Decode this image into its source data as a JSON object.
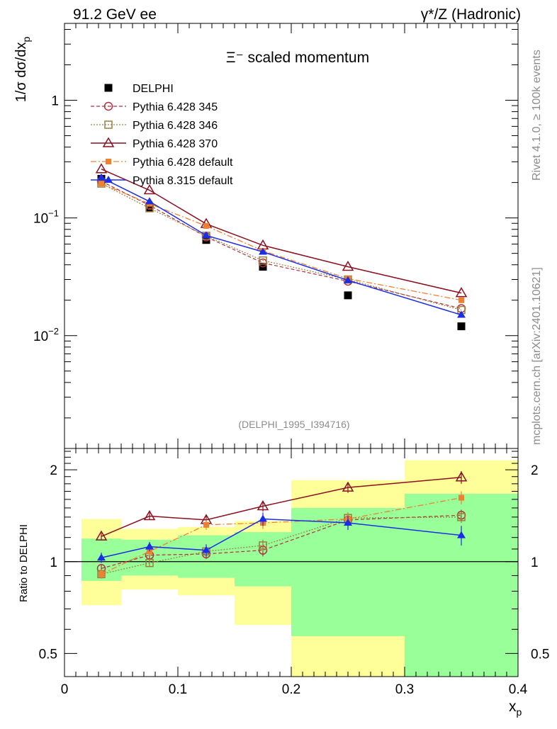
{
  "header": {
    "left_label": "91.2 GeV ee",
    "right_label": "γ*/Z (Hadronic)"
  },
  "side_labels": {
    "rivet": "Rivet 4.1.0, ≥ 100k events",
    "source": "mcplots.cern.ch [arXiv:2401.10621]"
  },
  "colors": {
    "delphi": "#000000",
    "p345": "#b03040",
    "p346": "#9c7c3c",
    "p370": "#8b1020",
    "p6def": "#f08030",
    "p8def": "#1a2ee8",
    "band_inner": "#99ff99",
    "band_outer": "#ffff99"
  },
  "chart_data": [
    {
      "type": "line",
      "title": "Ξ⁻ scaled momentum",
      "reference": "(DELPHI_1995_I394716)",
      "ylabel": "1/σ  dσ/dx_p",
      "xlabel": "",
      "yscale": "log",
      "xlim": [
        0,
        0.4
      ],
      "ylim": [
        0.0011,
        4.5
      ],
      "yticks": [
        {
          "value": 0.01,
          "label": "10",
          "exp": "−2"
        },
        {
          "value": 0.1,
          "label": "10",
          "exp": "−1"
        },
        {
          "value": 1,
          "label": "1",
          "exp": ""
        }
      ],
      "x": [
        0.0325,
        0.075,
        0.125,
        0.175,
        0.25,
        0.35
      ],
      "x_edges": [
        0.015,
        0.05,
        0.1,
        0.15,
        0.2,
        0.3,
        0.4
      ],
      "series": [
        {
          "name": "DELPHI",
          "key": "delphi",
          "values": [
            0.215,
            0.122,
            0.065,
            0.0385,
            0.022,
            0.012
          ]
        },
        {
          "name": "Pythia 6.428 345",
          "key": "p345",
          "values": [
            0.205,
            0.128,
            0.069,
            0.0415,
            0.029,
            0.017
          ]
        },
        {
          "name": "Pythia 6.428 346",
          "key": "p346",
          "values": [
            0.196,
            0.121,
            0.0705,
            0.0435,
            0.03,
            0.0165
          ]
        },
        {
          "name": "Pythia 6.428 370",
          "key": "p370",
          "values": [
            0.26,
            0.172,
            0.089,
            0.0585,
            0.0385,
            0.023
          ]
        },
        {
          "name": "Pythia 6.428 default",
          "key": "p6def",
          "values": [
            0.196,
            0.132,
            0.0855,
            0.0525,
            0.0305,
            0.02
          ]
        },
        {
          "name": "Pythia 8.315 default",
          "key": "p8def",
          "values": [
            0.22,
            0.138,
            0.071,
            0.0515,
            0.0295,
            0.015
          ]
        }
      ]
    },
    {
      "type": "line",
      "title": "",
      "xlabel": "x_p",
      "ylabel": "Ratio to DELPHI",
      "yscale": "log",
      "xlim": [
        0,
        0.4
      ],
      "ylim": [
        0.42,
        2.35
      ],
      "xticks": [
        {
          "value": 0,
          "label": "0"
        },
        {
          "value": 0.1,
          "label": "0.1"
        },
        {
          "value": 0.2,
          "label": "0.2"
        },
        {
          "value": 0.3,
          "label": "0.3"
        },
        {
          "value": 0.4,
          "label": "0.4"
        }
      ],
      "yticks": [
        {
          "value": 0.5,
          "label": "0.5"
        },
        {
          "value": 1,
          "label": "1"
        },
        {
          "value": 2,
          "label": "2"
        }
      ],
      "x": [
        0.0325,
        0.075,
        0.125,
        0.175,
        0.25,
        0.35
      ],
      "bands": {
        "x_edges": [
          0.015,
          0.05,
          0.1,
          0.15,
          0.2,
          0.3,
          0.4
        ],
        "inner_low": [
          0.865,
          0.9,
          0.885,
          0.83,
          0.57,
          0.42
        ],
        "inner_high": [
          1.19,
          1.18,
          1.22,
          1.25,
          1.5,
          1.67
        ],
        "outer_low": [
          0.72,
          0.81,
          0.775,
          0.62,
          0.42,
          0.42
        ],
        "outer_high": [
          1.38,
          1.28,
          1.3,
          1.36,
          1.85,
          2.15
        ],
        "outer_low_alt": [
          null,
          null,
          null,
          null,
          0.55,
          null
        ]
      },
      "series": [
        {
          "name": "Pythia 6.428 345",
          "key": "p345",
          "values": [
            0.95,
            1.05,
            1.06,
            1.09,
            1.37,
            1.42
          ],
          "err": [
            0.03,
            0.03,
            0.04,
            0.05,
            0.06,
            0.06
          ]
        },
        {
          "name": "Pythia 6.428 346",
          "key": "p346",
          "values": [
            0.91,
            0.99,
            1.08,
            1.13,
            1.39,
            1.4
          ],
          "err": [
            0.03,
            0.03,
            0.04,
            0.05,
            0.06,
            0.06
          ]
        },
        {
          "name": "Pythia 6.428 370",
          "key": "p370",
          "values": [
            1.21,
            1.41,
            1.37,
            1.52,
            1.75,
            1.89
          ],
          "err": [
            0.03,
            0.04,
            0.05,
            0.06,
            0.07,
            0.09
          ]
        },
        {
          "name": "Pythia 6.428 default",
          "key": "p6def",
          "values": [
            0.91,
            1.08,
            1.32,
            1.34,
            1.38,
            1.62
          ],
          "err": [
            0.03,
            0.03,
            0.05,
            0.06,
            0.06,
            0.08
          ]
        },
        {
          "name": "Pythia 8.315 default",
          "key": "p8def",
          "values": [
            1.03,
            1.12,
            1.09,
            1.38,
            1.34,
            1.22
          ],
          "err": [
            0.04,
            0.04,
            0.05,
            0.07,
            0.07,
            0.09
          ]
        }
      ]
    }
  ]
}
